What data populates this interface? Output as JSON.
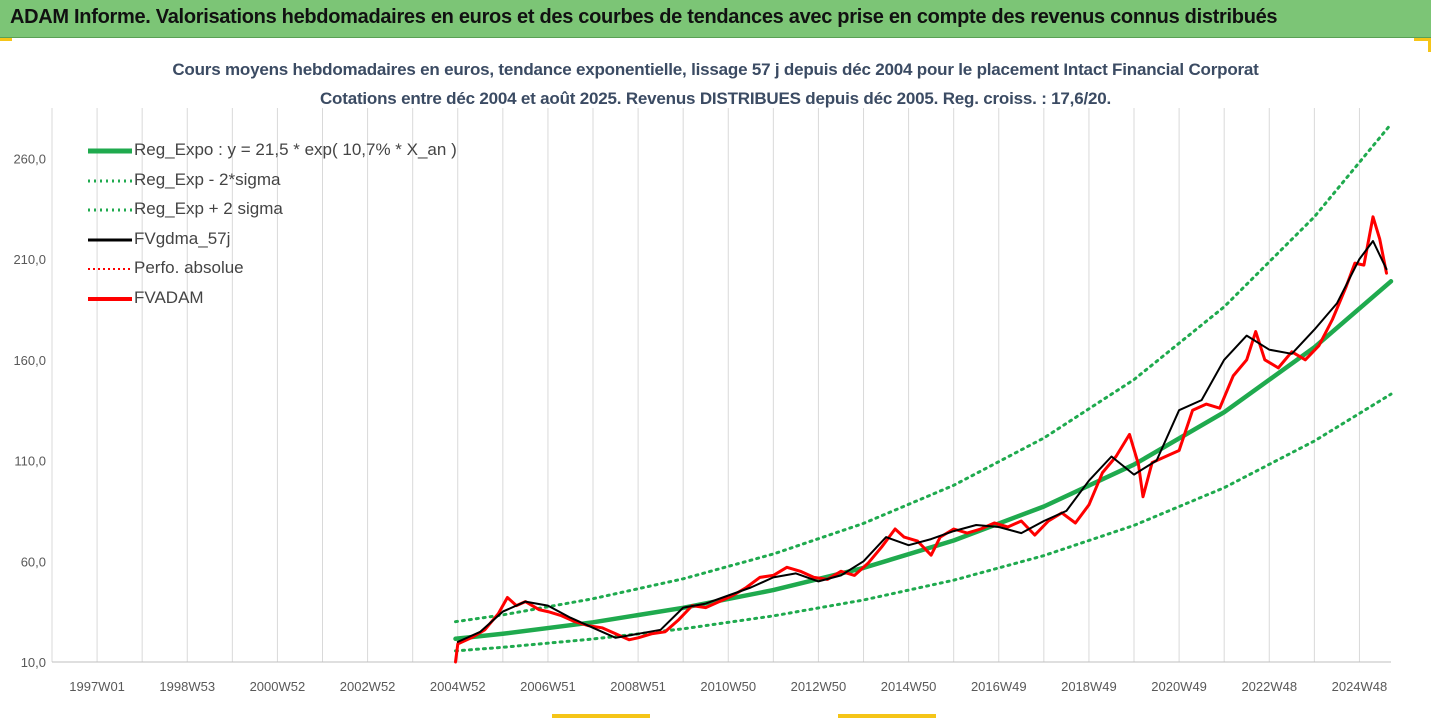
{
  "banner": {
    "title": "ADAM Informe. Valorisations hebdomadaires en euros et des courbes de tendances avec prise en compte des revenus connus distribués",
    "bg_color": "#7cc576"
  },
  "chart_data": {
    "type": "line",
    "title": "Cours moyens hebdomadaires en euros, tendance exponentielle, lissage 57 j depuis déc 2004 pour le placement Intact Financial Corporat",
    "subtitle": "Cotations entre déc 2004 et août 2025. Revenus DISTRIBUES depuis déc 2005. Reg. croiss. : 17,6/20.",
    "xlabel": "",
    "ylabel": "",
    "x_tick_labels": [
      "1997W01",
      "1998W53",
      "2000W52",
      "2002W52",
      "2004W52",
      "2006W51",
      "2008W51",
      "2010W50",
      "2012W50",
      "2014W50",
      "2016W49",
      "2018W49",
      "2020W49",
      "2022W48",
      "2024W48"
    ],
    "x_tick_years": [
      1997.0,
      1999.0,
      2001.0,
      2003.0,
      2005.0,
      2007.0,
      2009.0,
      2011.0,
      2013.0,
      2015.0,
      2017.0,
      2019.0,
      2021.0,
      2023.0,
      2025.0
    ],
    "xlim": [
      1996.0,
      2025.7
    ],
    "ylim": [
      10,
      285
    ],
    "y_ticks": [
      10,
      60,
      110,
      160,
      210,
      260
    ],
    "y_tick_labels": [
      "10,0",
      "60,0",
      "110,0",
      "160,0",
      "210,0",
      "260,0"
    ],
    "grid": "vertical",
    "legend_position": "top-left",
    "series": [
      {
        "name": "Reg_Expo : y = 21,5 * exp( 10,7% *  X_an )",
        "style": "solid",
        "color": "#1faa4e",
        "x": [
          2004.95,
          2006,
          2008,
          2010,
          2012,
          2014,
          2016,
          2018,
          2020,
          2022,
          2024,
          2025.7
        ],
        "y": [
          21.5,
          24.0,
          29.7,
          36.9,
          45.7,
          56.7,
          70.3,
          87.2,
          108.0,
          134.0,
          166.2,
          199.0
        ]
      },
      {
        "name": "Reg_Exp - 2*sigma",
        "style": "dotted",
        "color": "#1faa4e",
        "x": [
          2004.95,
          2006,
          2008,
          2010,
          2012,
          2014,
          2016,
          2018,
          2020,
          2022,
          2024,
          2025.7
        ],
        "y": [
          15.5,
          17.3,
          21.4,
          26.5,
          32.9,
          40.8,
          50.6,
          62.8,
          77.8,
          96.5,
          119.7,
          143.0
        ]
      },
      {
        "name": "Reg_Exp + 2 sigma",
        "style": "dotted",
        "color": "#1faa4e",
        "x": [
          2004.95,
          2006,
          2008,
          2010,
          2012,
          2014,
          2016,
          2018,
          2020,
          2022,
          2024,
          2025.7
        ],
        "y": [
          30.0,
          33.4,
          41.4,
          51.3,
          63.6,
          78.8,
          97.7,
          121.2,
          150.2,
          186.3,
          231.0,
          277.0
        ]
      },
      {
        "name": "FVgdma_57j",
        "style": "solid",
        "color": "#000000",
        "x": [
          2005.0,
          2005.5,
          2006.0,
          2006.5,
          2007.0,
          2007.5,
          2008.0,
          2008.5,
          2009.0,
          2009.5,
          2010.0,
          2010.5,
          2011.0,
          2011.5,
          2012.0,
          2012.5,
          2013.0,
          2013.5,
          2014.0,
          2014.5,
          2015.0,
          2015.5,
          2016.0,
          2016.5,
          2017.0,
          2017.5,
          2018.0,
          2018.5,
          2019.0,
          2019.5,
          2020.0,
          2020.5,
          2021.0,
          2021.5,
          2022.0,
          2022.5,
          2023.0,
          2023.5,
          2024.0,
          2024.5,
          2025.0,
          2025.3,
          2025.6
        ],
        "y": [
          20,
          25,
          35,
          40,
          38,
          32,
          27,
          22,
          24,
          26,
          37,
          39,
          43,
          47,
          52,
          54,
          50,
          53,
          60,
          72,
          68,
          71,
          75,
          78,
          77,
          74,
          80,
          85,
          100,
          112,
          103,
          110,
          135,
          140,
          160,
          172,
          165,
          163,
          175,
          188,
          210,
          219,
          205
        ]
      },
      {
        "name": "Perfo. absolue",
        "style": "dotted",
        "color": "#ff0000",
        "x": [],
        "y": []
      },
      {
        "name": "FVADAM",
        "style": "solid",
        "color": "#ff0000",
        "x": [
          2004.95,
          2005.0,
          2005.3,
          2005.6,
          2005.9,
          2006.1,
          2006.3,
          2006.5,
          2006.8,
          2007.0,
          2007.3,
          2007.6,
          2007.9,
          2008.2,
          2008.5,
          2008.8,
          2009.0,
          2009.3,
          2009.6,
          2009.9,
          2010.2,
          2010.5,
          2010.8,
          2011.1,
          2011.4,
          2011.7,
          2012.0,
          2012.3,
          2012.6,
          2012.9,
          2013.2,
          2013.5,
          2013.8,
          2014.1,
          2014.4,
          2014.7,
          2014.9,
          2015.2,
          2015.5,
          2015.7,
          2016.0,
          2016.3,
          2016.6,
          2016.9,
          2017.2,
          2017.5,
          2017.8,
          2018.1,
          2018.4,
          2018.7,
          2019.0,
          2019.3,
          2019.6,
          2019.9,
          2020.1,
          2020.2,
          2020.4,
          2020.7,
          2021.0,
          2021.3,
          2021.6,
          2021.9,
          2022.2,
          2022.5,
          2022.7,
          2022.9,
          2023.2,
          2023.5,
          2023.8,
          2024.1,
          2024.4,
          2024.7,
          2024.9,
          2025.1,
          2025.3,
          2025.45,
          2025.6
        ],
        "y": [
          10,
          19,
          22,
          26,
          34,
          42,
          38,
          40,
          36,
          35,
          33,
          30,
          28,
          27,
          24,
          21,
          22,
          24,
          25,
          31,
          38,
          37,
          40,
          43,
          47,
          52,
          53,
          57,
          55,
          52,
          51,
          55,
          53,
          59,
          67,
          76,
          72,
          70,
          63,
          72,
          76,
          74,
          76,
          79,
          77,
          80,
          73,
          80,
          84,
          79,
          88,
          104,
          112,
          123,
          108,
          92,
          109,
          112,
          115,
          135,
          138,
          136,
          152,
          160,
          174,
          160,
          156,
          164,
          160,
          167,
          180,
          196,
          208,
          207,
          231,
          220,
          203
        ]
      }
    ]
  }
}
